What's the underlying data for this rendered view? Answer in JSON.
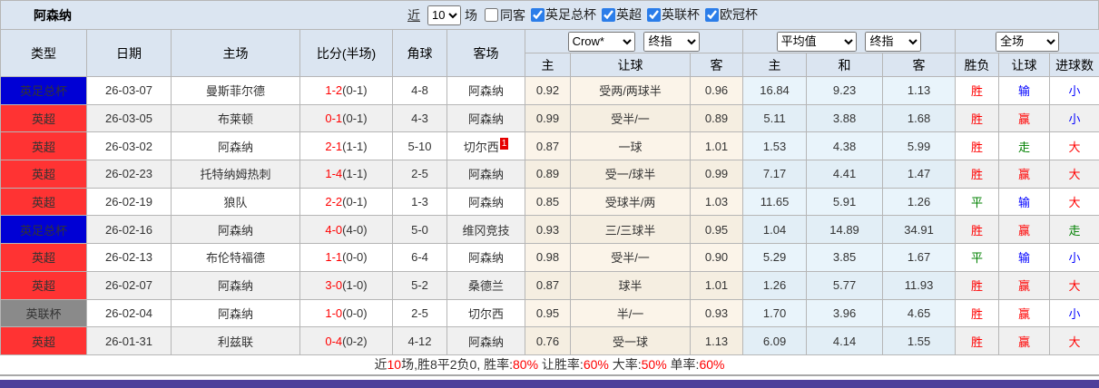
{
  "highlight_team": "阿森纳",
  "header": {
    "team_title": "阿森纳",
    "recent_label": "近",
    "recent_value": "10",
    "games_label": "场",
    "same_away_label": "同客",
    "same_away_checked": false,
    "filters": [
      {
        "label": "英足总杯",
        "checked": true
      },
      {
        "label": "英超",
        "checked": true
      },
      {
        "label": "英联杯",
        "checked": true
      },
      {
        "label": "欧冠杯",
        "checked": true
      }
    ]
  },
  "table": {
    "columns": [
      "类型",
      "日期",
      "主场",
      "比分(半场)",
      "角球",
      "客场"
    ],
    "groups": {
      "crow": {
        "selects": [
          "Crow*",
          "终指"
        ],
        "sub": [
          "主",
          "让球",
          "客"
        ]
      },
      "avg": {
        "selects": [
          "平均值",
          "终指"
        ],
        "sub": [
          "主",
          "和",
          "客"
        ]
      },
      "result": {
        "selects": [
          "全场"
        ],
        "sub": [
          "胜负",
          "让球",
          "进球数"
        ]
      }
    },
    "rows": [
      {
        "league": "英足总杯",
        "date": "26-03-07",
        "home": "曼斯菲尔德",
        "score": "1-2",
        "half": "(0-1)",
        "corner": "4-8",
        "away": "阿森纳",
        "away_badge": "",
        "crow": [
          "0.92",
          "受两/两球半",
          "0.96"
        ],
        "avg": [
          "16.84",
          "9.23",
          "1.13"
        ],
        "result": [
          "胜",
          "输",
          "小"
        ]
      },
      {
        "league": "英超",
        "date": "26-03-05",
        "home": "布莱顿",
        "score": "0-1",
        "half": "(0-1)",
        "corner": "4-3",
        "away": "阿森纳",
        "away_badge": "",
        "crow": [
          "0.99",
          "受半/一",
          "0.89"
        ],
        "avg": [
          "5.11",
          "3.88",
          "1.68"
        ],
        "result": [
          "胜",
          "赢",
          "小"
        ]
      },
      {
        "league": "英超",
        "date": "26-03-02",
        "home": "阿森纳",
        "score": "2-1",
        "half": "(1-1)",
        "corner": "5-10",
        "away": "切尔西",
        "away_badge": "1",
        "crow": [
          "0.87",
          "一球",
          "1.01"
        ],
        "avg": [
          "1.53",
          "4.38",
          "5.99"
        ],
        "result": [
          "胜",
          "走",
          "大"
        ]
      },
      {
        "league": "英超",
        "date": "26-02-23",
        "home": "托特纳姆热刺",
        "score": "1-4",
        "half": "(1-1)",
        "corner": "2-5",
        "away": "阿森纳",
        "away_badge": "",
        "crow": [
          "0.89",
          "受一/球半",
          "0.99"
        ],
        "avg": [
          "7.17",
          "4.41",
          "1.47"
        ],
        "result": [
          "胜",
          "赢",
          "大"
        ]
      },
      {
        "league": "英超",
        "date": "26-02-19",
        "home": "狼队",
        "score": "2-2",
        "half": "(0-1)",
        "corner": "1-3",
        "away": "阿森纳",
        "away_badge": "",
        "crow": [
          "0.85",
          "受球半/两",
          "1.03"
        ],
        "avg": [
          "11.65",
          "5.91",
          "1.26"
        ],
        "result": [
          "平",
          "输",
          "大"
        ]
      },
      {
        "league": "英足总杯",
        "date": "26-02-16",
        "home": "阿森纳",
        "score": "4-0",
        "half": "(4-0)",
        "corner": "5-0",
        "away": "维冈竞技",
        "away_badge": "",
        "crow": [
          "0.93",
          "三/三球半",
          "0.95"
        ],
        "avg": [
          "1.04",
          "14.89",
          "34.91"
        ],
        "result": [
          "胜",
          "赢",
          "走"
        ]
      },
      {
        "league": "英超",
        "date": "26-02-13",
        "home": "布伦特福德",
        "score": "1-1",
        "half": "(0-0)",
        "corner": "6-4",
        "away": "阿森纳",
        "away_badge": "",
        "crow": [
          "0.98",
          "受半/一",
          "0.90"
        ],
        "avg": [
          "5.29",
          "3.85",
          "1.67"
        ],
        "result": [
          "平",
          "输",
          "小"
        ]
      },
      {
        "league": "英超",
        "date": "26-02-07",
        "home": "阿森纳",
        "score": "3-0",
        "half": "(1-0)",
        "corner": "5-2",
        "away": "桑德兰",
        "away_badge": "",
        "crow": [
          "0.87",
          "球半",
          "1.01"
        ],
        "avg": [
          "1.26",
          "5.77",
          "11.93"
        ],
        "result": [
          "胜",
          "赢",
          "大"
        ]
      },
      {
        "league": "英联杯",
        "date": "26-02-04",
        "home": "阿森纳",
        "score": "1-0",
        "half": "(0-0)",
        "corner": "2-5",
        "away": "切尔西",
        "away_badge": "",
        "crow": [
          "0.95",
          "半/一",
          "0.93"
        ],
        "avg": [
          "1.70",
          "3.96",
          "4.65"
        ],
        "result": [
          "胜",
          "赢",
          "小"
        ]
      },
      {
        "league": "英超",
        "date": "26-01-31",
        "home": "利兹联",
        "score": "0-4",
        "half": "(0-2)",
        "corner": "4-12",
        "away": "阿森纳",
        "away_badge": "",
        "crow": [
          "0.76",
          "受一球",
          "1.13"
        ],
        "avg": [
          "6.09",
          "4.14",
          "1.55"
        ],
        "result": [
          "胜",
          "赢",
          "大"
        ]
      }
    ]
  },
  "summary": {
    "segments": [
      {
        "text": "近",
        "color": "#333333"
      },
      {
        "text": "10",
        "color": "#ff0000"
      },
      {
        "text": "场,胜8平2负0, 胜率:",
        "color": "#333333"
      },
      {
        "text": "80%",
        "color": "#ff0000"
      },
      {
        "text": " 让胜率:",
        "color": "#333333"
      },
      {
        "text": "60%",
        "color": "#ff0000"
      },
      {
        "text": " 大率:",
        "color": "#333333"
      },
      {
        "text": "50%",
        "color": "#ff0000"
      },
      {
        "text": " 单率:",
        "color": "#333333"
      },
      {
        "text": "60%",
        "color": "#ff0000"
      }
    ]
  },
  "colors": {
    "league": {
      "英超": "#ff3333",
      "英足总杯": "#0000d5",
      "英联杯": "#8a8a8a"
    },
    "value_colors": {
      "胜": "#ff0000",
      "平": "#008000",
      "负": "#0000ff",
      "赢": "#ff0000",
      "输": "#0000ff",
      "走": "#008000",
      "大": "#ff0000",
      "小": "#0000ff"
    },
    "header_bg": "#dbe5f1",
    "crow_bg": "#fbf4e9",
    "avg_bg": "#e9f4fb",
    "footer_bar": "#4d3f9a"
  }
}
